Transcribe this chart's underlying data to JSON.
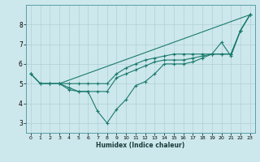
{
  "xlabel": "Humidex (Indice chaleur)",
  "bg_color": "#cde8ec",
  "line_color": "#1a7a6e",
  "grid_color": "#afd0d4",
  "xlim": [
    -0.5,
    23.5
  ],
  "ylim": [
    2.5,
    9.0
  ],
  "xticks": [
    0,
    1,
    2,
    3,
    4,
    5,
    6,
    7,
    8,
    9,
    10,
    11,
    12,
    13,
    14,
    15,
    16,
    17,
    18,
    19,
    20,
    21,
    22,
    23
  ],
  "yticks": [
    3,
    4,
    5,
    6,
    7,
    8
  ],
  "line1_x": [
    0,
    1,
    2,
    3,
    4,
    5,
    6,
    7,
    8,
    9,
    10,
    11,
    12,
    13,
    14,
    15,
    16,
    17,
    18,
    19,
    20,
    21,
    22,
    23
  ],
  "line1_y": [
    5.5,
    5.0,
    5.0,
    5.0,
    4.7,
    4.6,
    4.6,
    3.6,
    3.0,
    3.7,
    4.2,
    4.9,
    5.1,
    5.5,
    6.0,
    6.0,
    6.0,
    6.1,
    6.3,
    6.5,
    7.1,
    6.4,
    7.7,
    8.5
  ],
  "line2_x": [
    0,
    1,
    2,
    3,
    4,
    5,
    6,
    7,
    8,
    9,
    10,
    11,
    12,
    13,
    14,
    15,
    16,
    17,
    18,
    19,
    20,
    21,
    22,
    23
  ],
  "line2_y": [
    5.5,
    5.0,
    5.0,
    5.0,
    4.8,
    4.6,
    4.6,
    4.6,
    4.6,
    5.3,
    5.5,
    5.7,
    5.9,
    6.1,
    6.2,
    6.2,
    6.2,
    6.3,
    6.4,
    6.5,
    6.5,
    6.5,
    7.7,
    8.5
  ],
  "line3_x": [
    3,
    23
  ],
  "line3_y": [
    5.0,
    8.5
  ],
  "line4_x": [
    0,
    1,
    2,
    3,
    4,
    5,
    6,
    7,
    8,
    9,
    10,
    11,
    12,
    13,
    14,
    15,
    16,
    17,
    18,
    19,
    20,
    21,
    22,
    23
  ],
  "line4_y": [
    5.5,
    5.0,
    5.0,
    5.0,
    5.0,
    5.0,
    5.0,
    5.0,
    5.0,
    5.5,
    5.8,
    6.0,
    6.2,
    6.3,
    6.4,
    6.5,
    6.5,
    6.5,
    6.5,
    6.5,
    6.5,
    6.5,
    7.7,
    8.5
  ]
}
